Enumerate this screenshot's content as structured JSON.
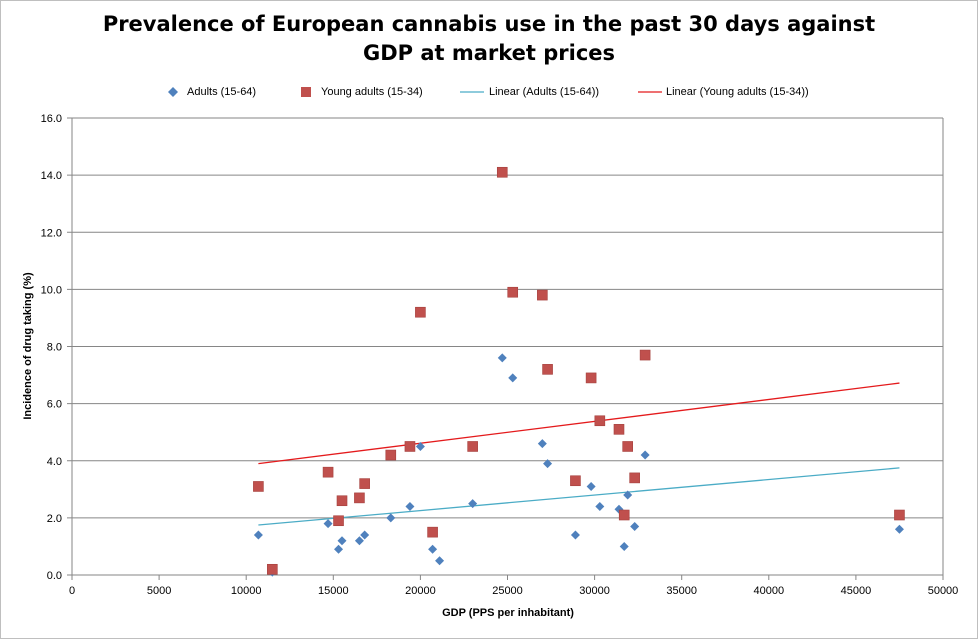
{
  "chart_data": {
    "type": "scatter",
    "title": "Prevalence of European cannabis use in the past 30 days against GDP at market prices",
    "xlabel": "GDP (PPS per inhabitant)",
    "ylabel": "Incidence of drug taking (%)",
    "xlim": [
      0,
      50000
    ],
    "ylim": [
      0,
      16
    ],
    "xticks": [
      "0",
      "5000",
      "10000",
      "15000",
      "20000",
      "25000",
      "30000",
      "35000",
      "40000",
      "45000",
      "50000"
    ],
    "yticks": [
      "0.0",
      "2.0",
      "4.0",
      "6.0",
      "8.0",
      "10.0",
      "12.0",
      "14.0",
      "16.0"
    ],
    "grid": "horizontal",
    "legend_position": "top",
    "series": [
      {
        "name": "Adults (15-64)",
        "marker": "diamond",
        "color": "#4f81bd",
        "points": [
          [
            10700,
            1.4
          ],
          [
            11500,
            0.1
          ],
          [
            14700,
            1.8
          ],
          [
            15300,
            0.9
          ],
          [
            15500,
            1.2
          ],
          [
            16500,
            1.2
          ],
          [
            16800,
            1.4
          ],
          [
            18300,
            2.0
          ],
          [
            19400,
            2.4
          ],
          [
            20000,
            4.5
          ],
          [
            20700,
            0.9
          ],
          [
            21100,
            0.5
          ],
          [
            23000,
            2.5
          ],
          [
            24700,
            7.6
          ],
          [
            25300,
            6.9
          ],
          [
            27000,
            4.6
          ],
          [
            27300,
            3.9
          ],
          [
            28900,
            1.4
          ],
          [
            29800,
            3.1
          ],
          [
            30300,
            2.4
          ],
          [
            31400,
            2.3
          ],
          [
            31700,
            1.0
          ],
          [
            31900,
            2.8
          ],
          [
            32300,
            1.7
          ],
          [
            32900,
            4.2
          ],
          [
            47500,
            1.6
          ]
        ]
      },
      {
        "name": "Young adults (15-34)",
        "marker": "square",
        "color": "#c0504d",
        "points": [
          [
            10700,
            3.1
          ],
          [
            11500,
            0.2
          ],
          [
            14700,
            3.6
          ],
          [
            15300,
            1.9
          ],
          [
            15500,
            2.6
          ],
          [
            16500,
            2.7
          ],
          [
            16800,
            3.2
          ],
          [
            18300,
            4.2
          ],
          [
            19400,
            4.5
          ],
          [
            20000,
            9.2
          ],
          [
            20700,
            1.5
          ],
          [
            23000,
            4.5
          ],
          [
            24700,
            14.1
          ],
          [
            25300,
            9.9
          ],
          [
            27000,
            9.8
          ],
          [
            27300,
            7.2
          ],
          [
            28900,
            3.3
          ],
          [
            29800,
            6.9
          ],
          [
            30300,
            5.4
          ],
          [
            31400,
            5.1
          ],
          [
            31700,
            2.1
          ],
          [
            31900,
            4.5
          ],
          [
            32300,
            3.4
          ],
          [
            32900,
            7.7
          ],
          [
            47500,
            2.1
          ]
        ]
      }
    ],
    "trendlines": [
      {
        "name": "Linear (Adults (15-64))",
        "color": "#4bacc6",
        "x": [
          10700,
          47500
        ],
        "y": [
          1.75,
          3.75
        ]
      },
      {
        "name": "Linear (Young adults (15-34))",
        "color": "#e41a1c",
        "x": [
          10700,
          47500
        ],
        "y": [
          3.9,
          6.72
        ]
      }
    ]
  }
}
